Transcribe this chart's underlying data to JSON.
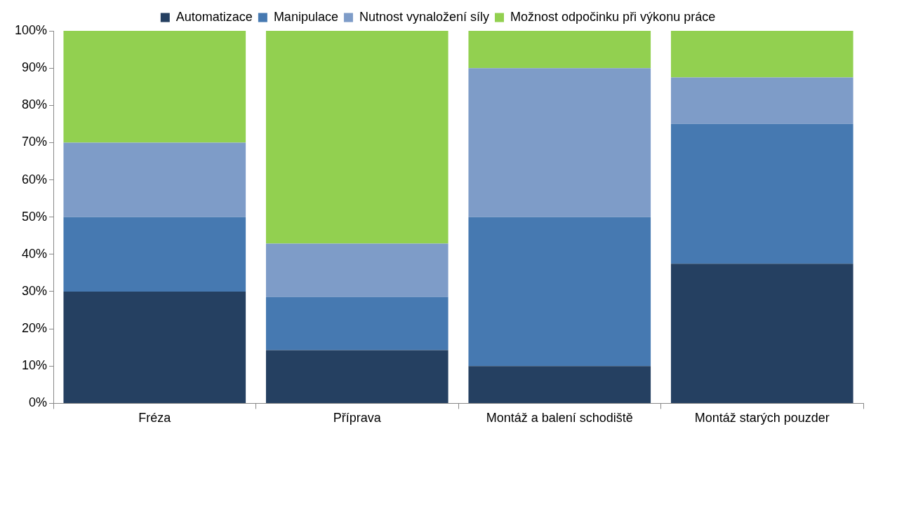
{
  "chart_data": {
    "type": "bar",
    "stacked": true,
    "categories": [
      "Fréza",
      "Příprava",
      "Montáž a balení schodiště",
      "Montáž starých pouzder"
    ],
    "series": [
      {
        "name": "Automatizace",
        "color": "#254061",
        "values": [
          30,
          14.3,
          10,
          37.5
        ]
      },
      {
        "name": "Manipulace",
        "color": "#4679b1",
        "values": [
          20,
          14.3,
          40,
          37.5
        ]
      },
      {
        "name": "Nutnost vynaložení síly",
        "color": "#7e9cc8",
        "values": [
          20,
          14.3,
          40,
          12.5
        ]
      },
      {
        "name": "Možnost odpočinku při výkonu práce",
        "color": "#92d050",
        "values": [
          30,
          57.1,
          10,
          12.5
        ]
      }
    ],
    "ylim": [
      0,
      100
    ],
    "yticks": [
      {
        "value": 0,
        "label": "0%"
      },
      {
        "value": 10,
        "label": "10%"
      },
      {
        "value": 20,
        "label": "20%"
      },
      {
        "value": 30,
        "label": "30%"
      },
      {
        "value": 40,
        "label": "40%"
      },
      {
        "value": 50,
        "label": "50%"
      },
      {
        "value": 60,
        "label": "60%"
      },
      {
        "value": 70,
        "label": "70%"
      },
      {
        "value": 80,
        "label": "80%"
      },
      {
        "value": 90,
        "label": "90%"
      },
      {
        "value": 100,
        "label": "100%"
      }
    ],
    "grid": false,
    "legend": "top"
  }
}
